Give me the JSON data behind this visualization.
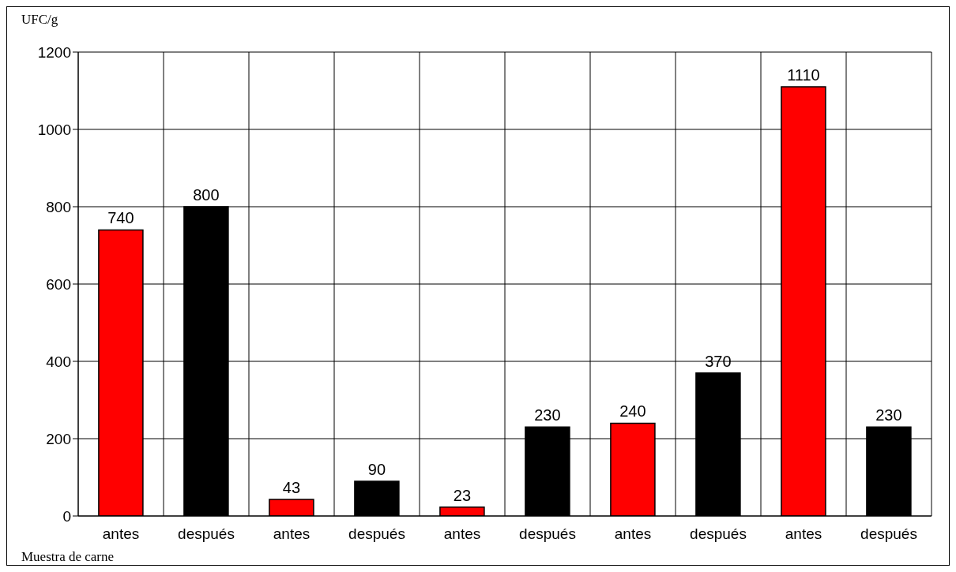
{
  "chart_data": {
    "type": "bar",
    "ylabel": "UFC/g",
    "xlabel": "Muestra de carne",
    "categories": [
      "antes",
      "después",
      "antes",
      "después",
      "antes",
      "después",
      "antes",
      "después",
      "antes",
      "después"
    ],
    "values": [
      740,
      800,
      43,
      90,
      23,
      230,
      240,
      370,
      1110,
      230
    ],
    "colors": [
      "#ff0000",
      "#000000",
      "#ff0000",
      "#000000",
      "#ff0000",
      "#000000",
      "#ff0000",
      "#000000",
      "#ff0000",
      "#000000"
    ],
    "ylim": [
      0,
      1200
    ],
    "yticks": [
      0,
      200,
      400,
      600,
      800,
      1000,
      1200
    ],
    "grid": true,
    "data_labels": true
  }
}
